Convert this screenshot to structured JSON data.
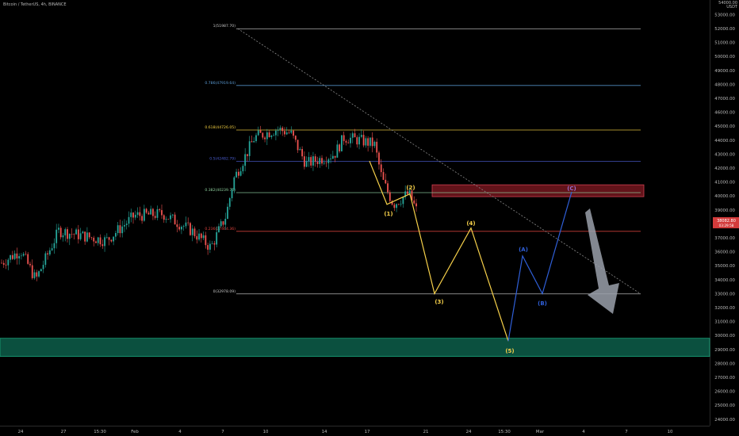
{
  "header": {
    "title": "Bitcoin / TetherUS, 4h, BINANCE"
  },
  "price_axis": {
    "top_label": "54000.00",
    "currency": "USDT",
    "ticks": [
      53000,
      52000,
      51000,
      50000,
      49000,
      48000,
      47000,
      46000,
      45000,
      44000,
      43000,
      42000,
      41000,
      40000,
      39000,
      38000,
      37000,
      36000,
      35000,
      34000,
      33000,
      32000,
      31000,
      30000,
      29000,
      28000,
      27000,
      26000,
      25000,
      24000
    ],
    "current_price_label": "38082.80",
    "current_price_sub": "03:29:58",
    "current_price": 38082.8
  },
  "time_axis": {
    "labels": [
      "24",
      "27",
      "15:30",
      "Feb",
      "4",
      "7",
      "10",
      "14",
      "17",
      "21",
      "24",
      "15:30",
      "Mar",
      "4",
      "7",
      "10"
    ]
  },
  "colors": {
    "up": "#26a69a",
    "down": "#ef5350",
    "wave_yellow": "#f7d14a",
    "wave_blue": "#2f5fd8",
    "resistance_zone": "#b4232f",
    "support_zone": "#0f6b54",
    "arrow": "#9aa0aa"
  },
  "chart_data": {
    "type": "candlestick",
    "title": "Bitcoin / TetherUS, 4h, BINANCE",
    "ylim": [
      23800,
      54200
    ],
    "fib_levels": [
      {
        "label": "1(51987.70)",
        "value": 51987.7,
        "color": "#c8c8c8"
      },
      {
        "label": "0.786(47919.64)",
        "value": 47919.64,
        "color": "#5b9bd5"
      },
      {
        "label": "0.618(44726.05)",
        "value": 44726.05,
        "color": "#f5d142"
      },
      {
        "label": "0.5(42482.79)",
        "value": 42482.79,
        "color": "#4a5ccf"
      },
      {
        "label": "0.382(40239.76)",
        "value": 40239.76,
        "color": "#8fd19e"
      },
      {
        "label": "0.236(37464.36)",
        "value": 37464.36,
        "color": "#e0443e"
      },
      {
        "label": "0(32978.09)",
        "value": 32978.09,
        "color": "#c8c8c8"
      }
    ],
    "resistance_zone": [
      39950,
      40800
    ],
    "support_zone": [
      28500,
      29800
    ],
    "wave_points": [
      {
        "label": "(1)",
        "value": 39400
      },
      {
        "label": "(2)",
        "value": 40150
      },
      {
        "label": "(3)",
        "value": 33000
      },
      {
        "label": "(4)",
        "value": 37700
      },
      {
        "label": "(5)",
        "value": 29600
      },
      {
        "label": "(A)",
        "value": 35700
      },
      {
        "label": "(B)",
        "value": 33000
      },
      {
        "label": "(C)",
        "value": 40300
      }
    ]
  }
}
